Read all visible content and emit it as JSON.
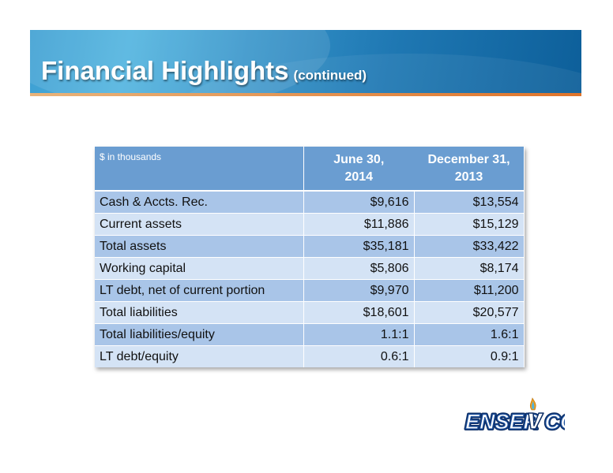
{
  "slide": {
    "title": "Financial Highlights",
    "subtitle": "(continued)"
  },
  "table": {
    "unit_label": "$ in thousands",
    "columns": [
      {
        "line1": "June 30,",
        "line2": "2014"
      },
      {
        "line1": "December 31,",
        "line2": "2013"
      }
    ],
    "rows": [
      {
        "label": "Cash & Accts. Rec.",
        "values": [
          "$9,616",
          "$13,554"
        ]
      },
      {
        "label": "Current assets",
        "values": [
          "$11,886",
          "$15,129"
        ]
      },
      {
        "label": "Total assets",
        "values": [
          "$35,181",
          "$33,422"
        ]
      },
      {
        "label": "Working capital",
        "values": [
          "$5,806",
          "$8,174"
        ]
      },
      {
        "label": "LT debt, net of current portion",
        "values": [
          "$9,970",
          "$11,200"
        ]
      },
      {
        "label": "Total liabilities",
        "values": [
          "$18,601",
          "$20,577"
        ]
      },
      {
        "label": "Total liabilities/equity",
        "values": [
          "1.1:1",
          "1.6:1"
        ]
      },
      {
        "label": "LT debt/equity",
        "values": [
          "0.6:1",
          "0.9:1"
        ]
      }
    ]
  },
  "logo": {
    "text_before": "ENSER",
    "text_after": "CO",
    "colors": {
      "body": "#1b4f9c",
      "outline": "#0d2e66",
      "flame": "#f0a020",
      "flame_inner": "#4fb3df"
    }
  }
}
